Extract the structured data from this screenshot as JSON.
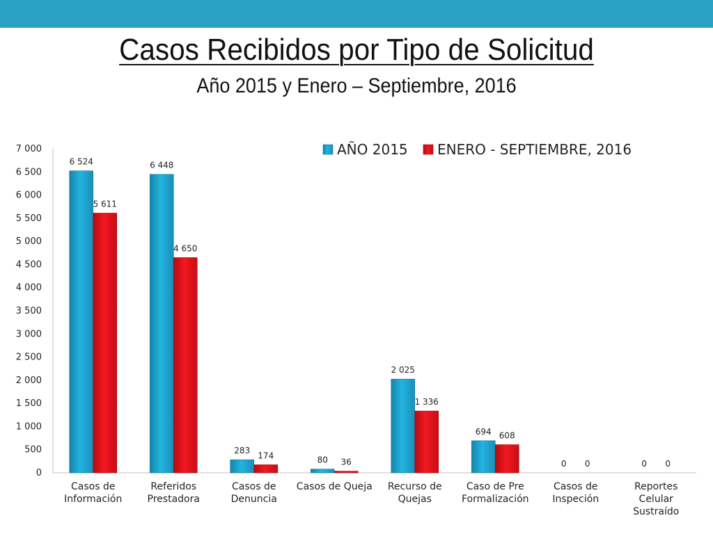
{
  "header": {
    "title": "Casos Recibidos por Tipo de Solicitud",
    "subtitle": "Año 2015 y Enero – Septiembre, 2016"
  },
  "colors": {
    "top_bar": "#2aa2c6",
    "series_2015": "#1fa3cf",
    "series_2016": "#e8141b"
  },
  "chart_data": {
    "type": "bar",
    "categories": [
      [
        "Casos de",
        "Información"
      ],
      [
        "Referidos",
        "Prestadora"
      ],
      [
        "Casos de",
        "Denuncia"
      ],
      [
        "Casos de Queja"
      ],
      [
        "Recurso de",
        "Quejas"
      ],
      [
        "Caso de Pre",
        "Formalización"
      ],
      [
        "Casos de",
        "Inspeción"
      ],
      [
        "Reportes",
        "Celular",
        "Sustraído"
      ]
    ],
    "series": [
      {
        "name": "AÑO 2015",
        "values": [
          6524,
          6448,
          283,
          80,
          2025,
          694,
          0,
          0
        ]
      },
      {
        "name": "ENERO - SEPTIEMBRE, 2016",
        "values": [
          5611,
          4650,
          174,
          36,
          1336,
          608,
          0,
          0
        ]
      }
    ],
    "data_labels": [
      [
        "6 524",
        "6 448",
        "283",
        "80",
        "2 025",
        "694",
        "0",
        "0"
      ],
      [
        "5 611",
        "4 650",
        "174",
        "36",
        "1 336",
        "608",
        "0",
        "0"
      ]
    ],
    "y_ticks": [
      0,
      500,
      1000,
      1500,
      2000,
      2500,
      3000,
      3500,
      4000,
      4500,
      5000,
      5500,
      6000,
      6500,
      7000
    ],
    "y_tick_labels": [
      "0",
      "500",
      "1 000",
      "1 500",
      "2 000",
      "2 500",
      "3 000",
      "3 500",
      "4 000",
      "4 500",
      "5 000",
      "5 500",
      "6 000",
      "6 500",
      "7 000"
    ],
    "ylim": [
      0,
      7000
    ],
    "grid": false,
    "legend_position": "top-right"
  }
}
